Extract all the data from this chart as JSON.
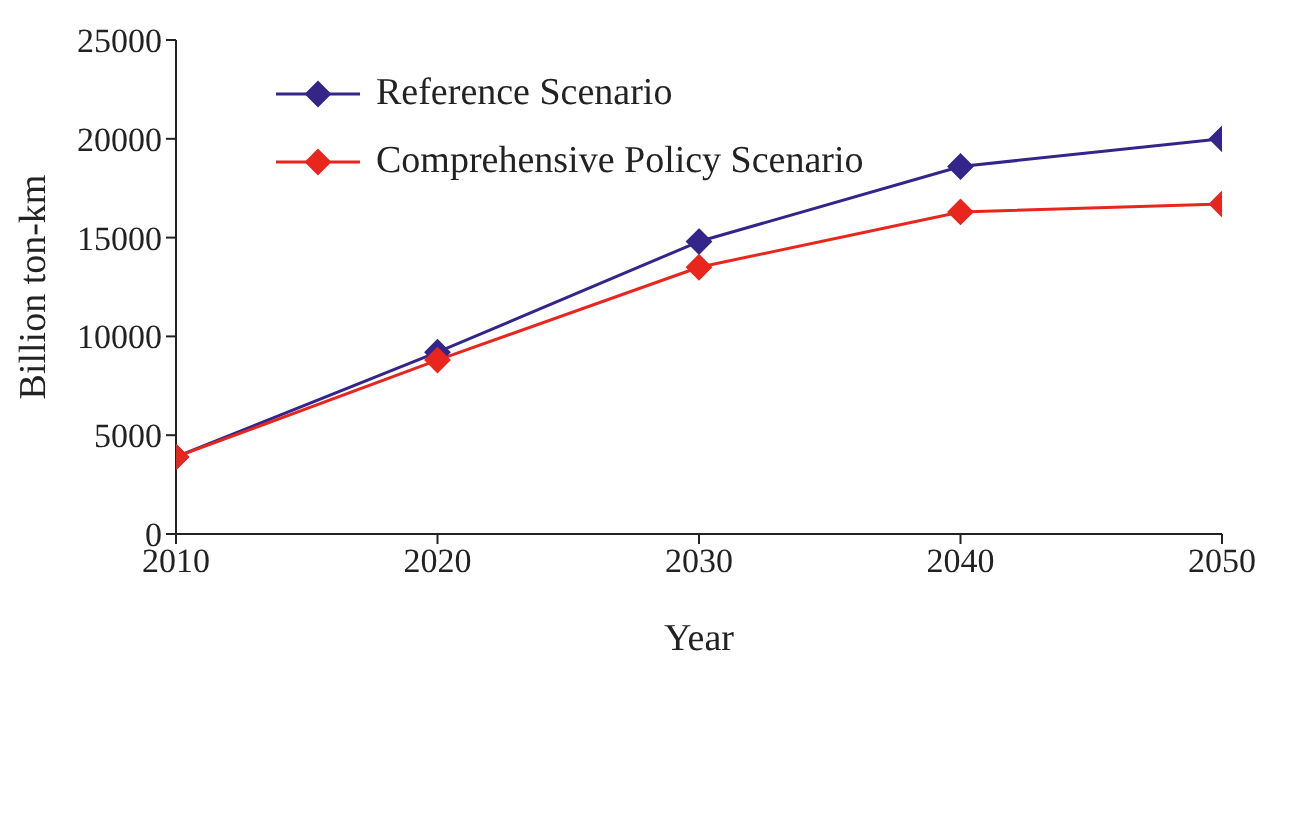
{
  "chart_data": {
    "type": "line",
    "xlabel": "Year",
    "ylabel": "Billion ton-km",
    "x": [
      2010,
      2020,
      2030,
      2040,
      2050
    ],
    "series": [
      {
        "name": "Reference Scenario",
        "color": "#33258a",
        "values": [
          3900,
          9200,
          14800,
          18600,
          20000
        ]
      },
      {
        "name": "Comprehensive Policy Scenario",
        "color": "#e8261e",
        "values": [
          3900,
          8800,
          13500,
          16300,
          16700
        ]
      }
    ],
    "xlim": [
      2010,
      2050
    ],
    "xticks": [
      2010,
      2020,
      2030,
      2040,
      2050
    ],
    "ylim": [
      0,
      25000
    ],
    "yticks": [
      0,
      5000,
      10000,
      15000,
      20000,
      25000
    ],
    "grid": false,
    "legend": "top left",
    "marker": "diamond",
    "line_style": "solid"
  }
}
